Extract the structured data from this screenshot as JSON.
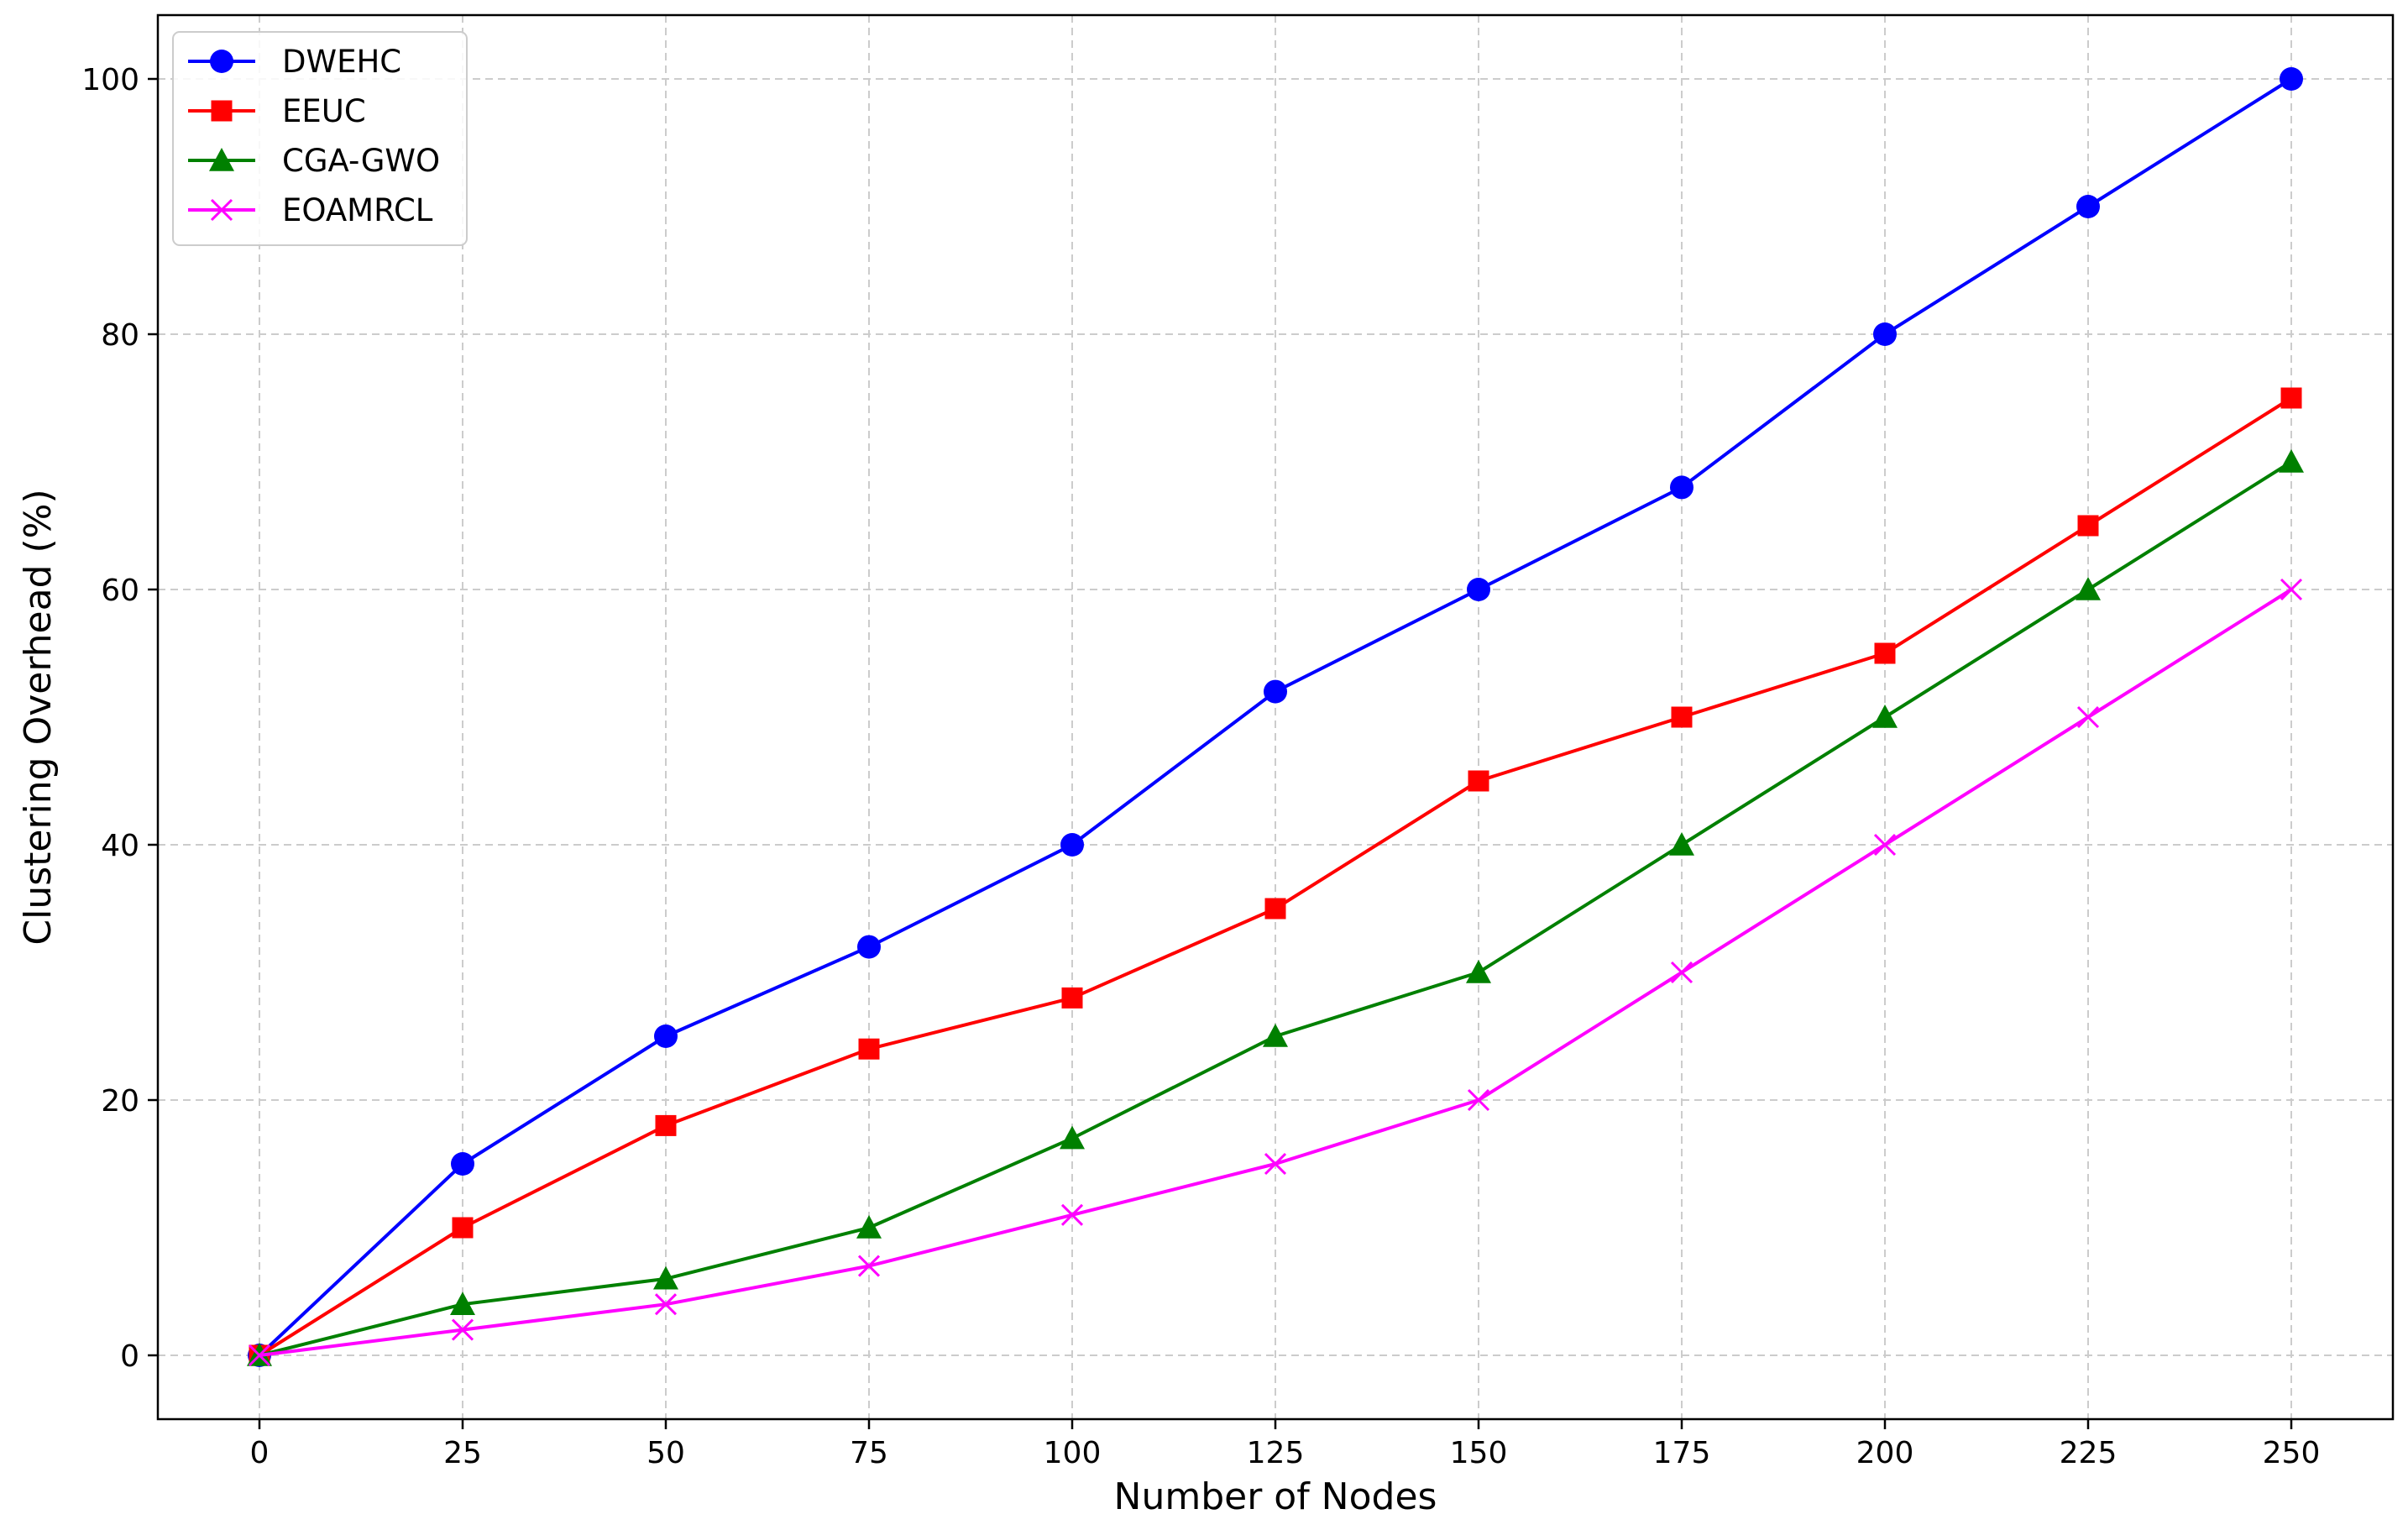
{
  "chart_data": {
    "type": "line",
    "title": "",
    "xlabel": "Number of Nodes",
    "ylabel": "Clustering Overhead (%)",
    "x": [
      0,
      25,
      50,
      75,
      100,
      125,
      150,
      175,
      200,
      225,
      250
    ],
    "xlim": [
      -12.5,
      262.5
    ],
    "ylim": [
      -5,
      105
    ],
    "xticks": [
      0,
      25,
      50,
      75,
      100,
      125,
      150,
      175,
      200,
      225,
      250
    ],
    "yticks": [
      0,
      20,
      40,
      60,
      80,
      100
    ],
    "grid": true,
    "legend_position": "top-left",
    "series": [
      {
        "name": "DWEHC",
        "color": "#0000ff",
        "marker": "circle",
        "values": [
          0,
          15,
          25,
          32,
          40,
          52,
          60,
          68,
          80,
          90,
          100
        ]
      },
      {
        "name": "EEUC",
        "color": "#ff0000",
        "marker": "square",
        "values": [
          0,
          10,
          18,
          24,
          28,
          35,
          45,
          50,
          55,
          65,
          75
        ]
      },
      {
        "name": "CGA-GWO",
        "color": "#008000",
        "marker": "triangle",
        "values": [
          0,
          4,
          6,
          10,
          17,
          25,
          30,
          40,
          50,
          60,
          70
        ]
      },
      {
        "name": "EOAMRCL",
        "color": "#ff00ff",
        "marker": "x",
        "values": [
          0,
          2,
          4,
          7,
          11,
          15,
          20,
          30,
          40,
          50,
          60
        ]
      }
    ]
  }
}
